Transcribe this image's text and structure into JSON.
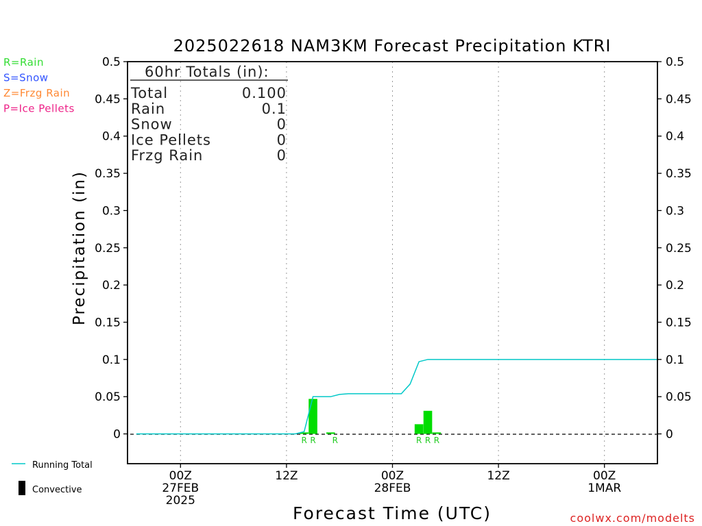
{
  "chart_data": {
    "type": "bar",
    "title": "2025022618 NAM3KM Forecast Precipitation KTRI",
    "xlabel": "Forecast Time (UTC)",
    "ylabel": "Precipitation (in)",
    "ylim": [
      -0.04,
      0.5
    ],
    "yticks": [
      0,
      0.05,
      0.1,
      0.15,
      0.2,
      0.25,
      0.3,
      0.35,
      0.4,
      0.45,
      0.5
    ],
    "ytick_labels": [
      "0",
      "0.05",
      "0.1",
      "0.15",
      "0.2",
      "0.25",
      "0.3",
      "0.35",
      "0.4",
      "0.45",
      "0.5"
    ],
    "xlim_hours": [
      -6,
      54
    ],
    "grid_x": "dotted",
    "xticks": [
      {
        "hour": 0,
        "lines": [
          "00Z",
          "27FEB",
          "2025"
        ]
      },
      {
        "hour": 12,
        "lines": [
          "12Z"
        ]
      },
      {
        "hour": 24,
        "lines": [
          "00Z",
          "28FEB"
        ]
      },
      {
        "hour": 36,
        "lines": [
          "12Z"
        ]
      },
      {
        "hour": 48,
        "lines": [
          "00Z",
          "1MAR"
        ]
      }
    ],
    "bar_color": "#00dd00",
    "bars": [
      {
        "hour": 14,
        "value": 0.002,
        "ptype": ""
      },
      {
        "hour": 15,
        "value": 0.047,
        "ptype": "R"
      },
      {
        "hour": 17,
        "value": 0.002,
        "ptype": ""
      },
      {
        "hour": 27,
        "value": 0.013,
        "ptype": "R"
      },
      {
        "hour": 28,
        "value": 0.031,
        "ptype": "R"
      },
      {
        "hour": 29,
        "value": 0.002,
        "ptype": ""
      }
    ],
    "ptype_labels": [
      {
        "hour": 14,
        "label": "R"
      },
      {
        "hour": 15,
        "label": "R"
      },
      {
        "hour": 17.5,
        "label": "R"
      },
      {
        "hour": 27,
        "label": "R"
      },
      {
        "hour": 28,
        "label": "R"
      },
      {
        "hour": 29,
        "label": "R"
      }
    ],
    "running_total": {
      "name": "Running Total",
      "color": "#00c8c8",
      "points": [
        [
          -5,
          0
        ],
        [
          13,
          0
        ],
        [
          14,
          0.003
        ],
        [
          15,
          0.05
        ],
        [
          16,
          0.05
        ],
        [
          17,
          0.05
        ],
        [
          18,
          0.053
        ],
        [
          19,
          0.054
        ],
        [
          25,
          0.054
        ],
        [
          26,
          0.067
        ],
        [
          27,
          0.097
        ],
        [
          28,
          0.1
        ],
        [
          54,
          0.1
        ]
      ]
    }
  },
  "legend_types": [
    {
      "text": "R=Rain",
      "color": "#33dd33"
    },
    {
      "text": "S=Snow",
      "color": "#3355ff"
    },
    {
      "text": "Z=Frzg Rain",
      "color": "#ff8833"
    },
    {
      "text": "P=Ice Pellets",
      "color": "#ee2288"
    }
  ],
  "legend_bottom": {
    "running_total": "Running Total",
    "convective": "Convective"
  },
  "totals": {
    "header": "60hr Totals (in):",
    "rows": [
      {
        "label": "Total",
        "value": "0.100"
      },
      {
        "label": "Rain",
        "value": "0.1"
      },
      {
        "label": "Snow",
        "value": "0"
      },
      {
        "label": "Ice Pellets",
        "value": "0"
      },
      {
        "label": "Frzg Rain",
        "value": "0"
      }
    ]
  },
  "credit": {
    "text": "coolwx.com/modelts",
    "color": "#dd2222"
  }
}
